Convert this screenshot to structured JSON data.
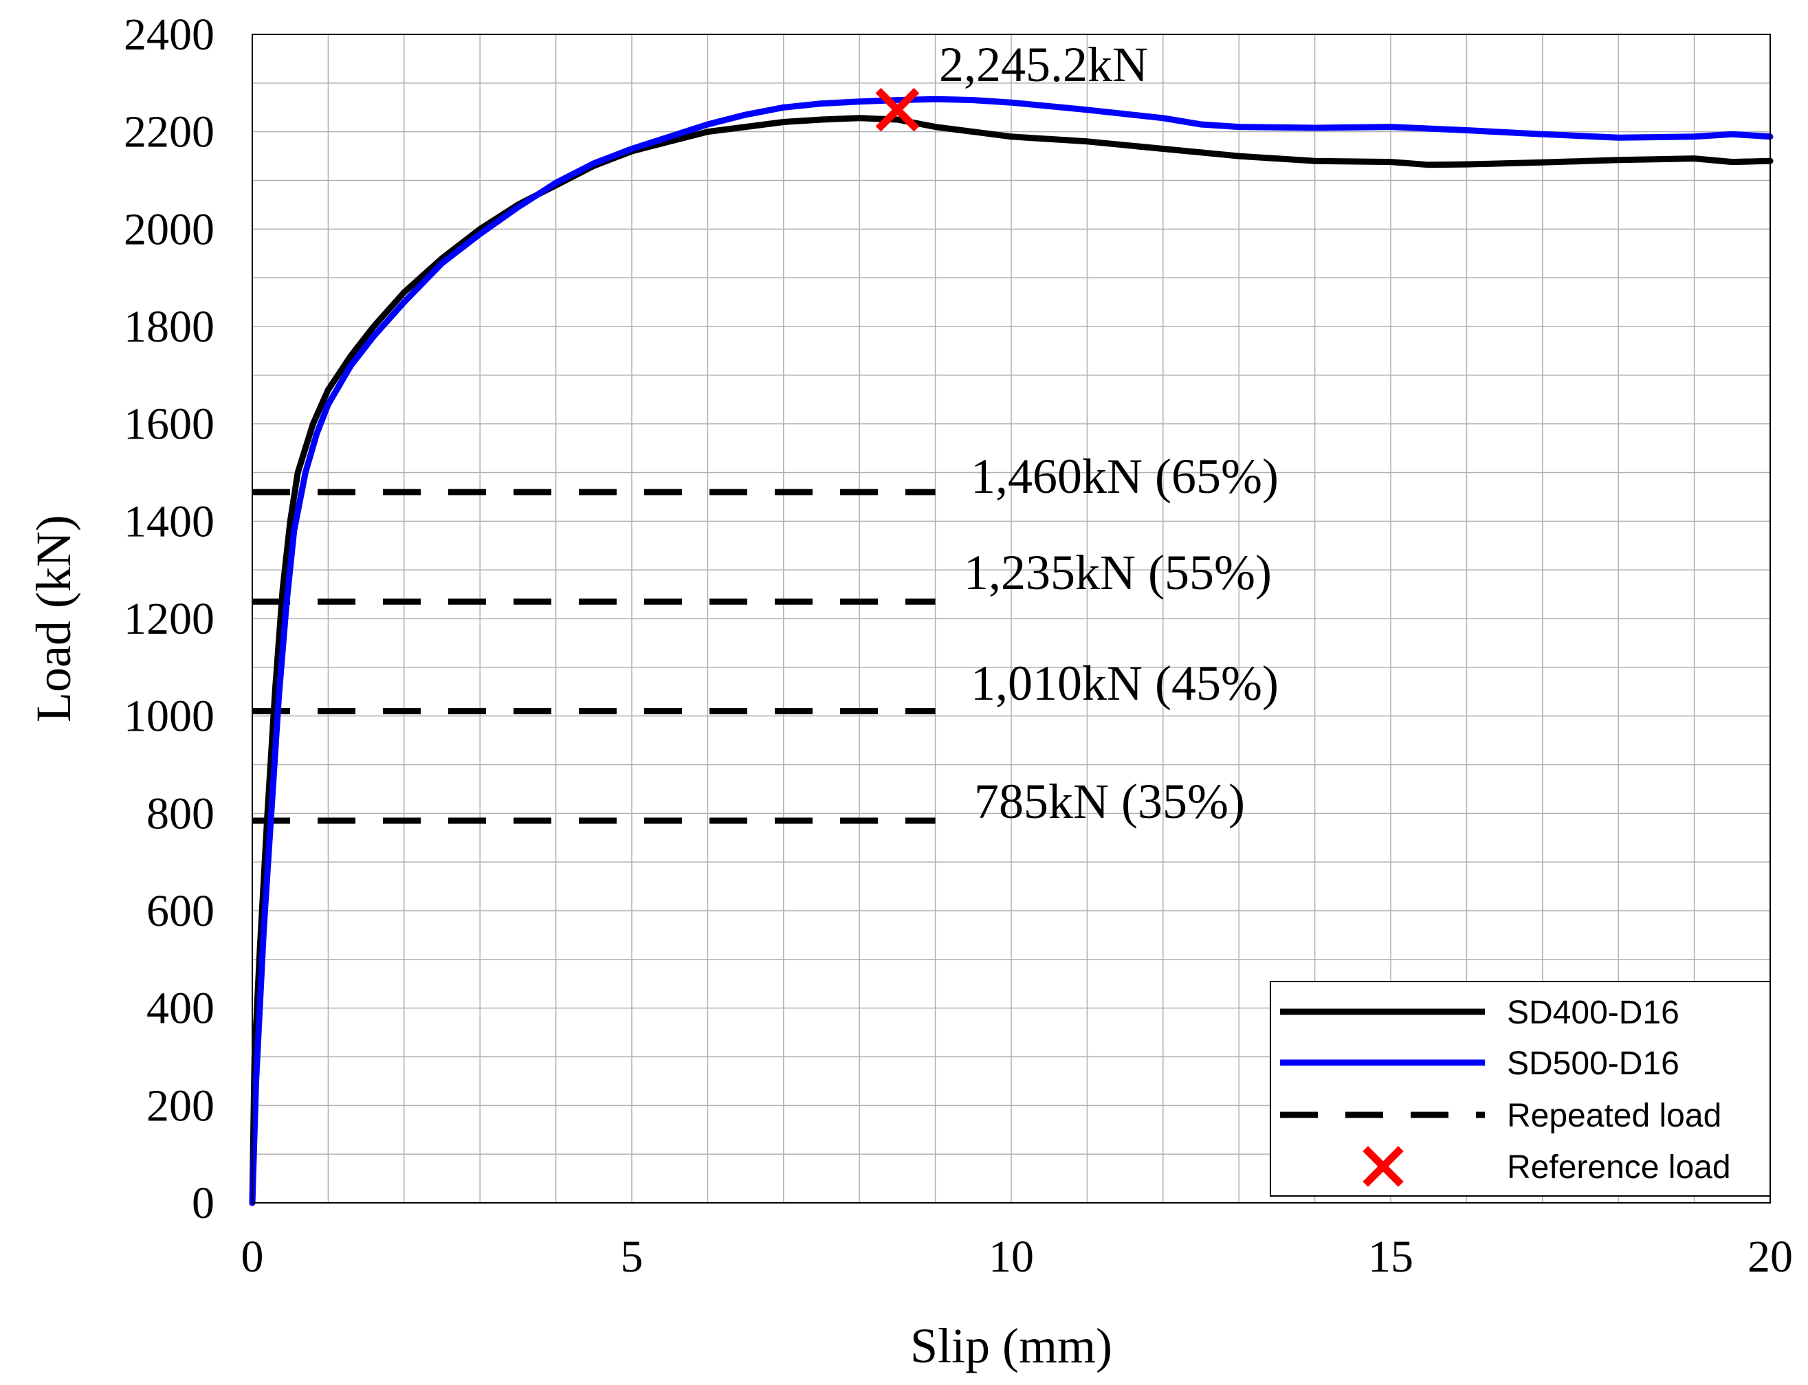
{
  "chart_data": {
    "type": "line",
    "title": "",
    "xlabel": "Slip (mm)",
    "ylabel": "Load (kN)",
    "xlim": [
      0,
      20
    ],
    "ylim": [
      0,
      2400
    ],
    "x_ticks": [
      0,
      5,
      10,
      15,
      20
    ],
    "y_ticks": [
      0,
      200,
      400,
      600,
      800,
      1000,
      1200,
      1400,
      1600,
      1800,
      2000,
      2200,
      2400
    ],
    "x_minor_step": 1,
    "y_minor_step": 100,
    "grid": true,
    "legend_position": "bottom-right",
    "series": [
      {
        "name": "SD400-D16",
        "color": "#000000",
        "style": "solid",
        "points": [
          [
            0,
            0
          ],
          [
            0.03,
            300
          ],
          [
            0.1,
            520
          ],
          [
            0.2,
            800
          ],
          [
            0.3,
            1050
          ],
          [
            0.4,
            1260
          ],
          [
            0.5,
            1400
          ],
          [
            0.6,
            1500
          ],
          [
            0.8,
            1600
          ],
          [
            1.0,
            1670
          ],
          [
            1.3,
            1740
          ],
          [
            1.6,
            1800
          ],
          [
            2.0,
            1870
          ],
          [
            2.5,
            1940
          ],
          [
            3.0,
            2000
          ],
          [
            3.5,
            2050
          ],
          [
            4.0,
            2090
          ],
          [
            4.5,
            2130
          ],
          [
            5.0,
            2160
          ],
          [
            5.5,
            2180
          ],
          [
            6.0,
            2200
          ],
          [
            6.5,
            2210
          ],
          [
            7.0,
            2220
          ],
          [
            7.5,
            2225
          ],
          [
            8.0,
            2228
          ],
          [
            8.5,
            2225
          ],
          [
            9.0,
            2210
          ],
          [
            9.5,
            2200
          ],
          [
            10.0,
            2190
          ],
          [
            11.0,
            2180
          ],
          [
            12.0,
            2165
          ],
          [
            13.0,
            2150
          ],
          [
            14.0,
            2140
          ],
          [
            15.0,
            2138
          ],
          [
            15.5,
            2132
          ],
          [
            16.0,
            2133
          ],
          [
            17.0,
            2137
          ],
          [
            18.0,
            2142
          ],
          [
            19.0,
            2145
          ],
          [
            19.5,
            2138
          ],
          [
            20.0,
            2140
          ]
        ]
      },
      {
        "name": "SD500-D16",
        "color": "#0000ff",
        "style": "solid",
        "points": [
          [
            0,
            0
          ],
          [
            0.05,
            250
          ],
          [
            0.15,
            560
          ],
          [
            0.25,
            800
          ],
          [
            0.35,
            1040
          ],
          [
            0.45,
            1230
          ],
          [
            0.55,
            1380
          ],
          [
            0.7,
            1500
          ],
          [
            0.85,
            1580
          ],
          [
            1.0,
            1640
          ],
          [
            1.3,
            1720
          ],
          [
            1.6,
            1780
          ],
          [
            2.0,
            1850
          ],
          [
            2.5,
            1930
          ],
          [
            3.0,
            1990
          ],
          [
            3.5,
            2045
          ],
          [
            4.0,
            2095
          ],
          [
            4.5,
            2135
          ],
          [
            5.0,
            2165
          ],
          [
            5.5,
            2190
          ],
          [
            6.0,
            2215
          ],
          [
            6.5,
            2235
          ],
          [
            7.0,
            2250
          ],
          [
            7.5,
            2258
          ],
          [
            8.0,
            2262
          ],
          [
            8.5,
            2265
          ],
          [
            9.0,
            2267
          ],
          [
            9.5,
            2265
          ],
          [
            10.0,
            2260
          ],
          [
            11.0,
            2245
          ],
          [
            12.0,
            2228
          ],
          [
            12.5,
            2215
          ],
          [
            13.0,
            2210
          ],
          [
            14.0,
            2208
          ],
          [
            15.0,
            2210
          ],
          [
            16.0,
            2203
          ],
          [
            17.0,
            2195
          ],
          [
            18.0,
            2188
          ],
          [
            19.0,
            2190
          ],
          [
            19.5,
            2195
          ],
          [
            20.0,
            2190
          ]
        ]
      }
    ],
    "repeated_load": {
      "name": "Repeated load",
      "x_range": [
        0,
        9
      ],
      "levels": [
        {
          "y": 1460,
          "label": "1,460kN (65%)"
        },
        {
          "y": 1235,
          "label": "1,235kN (55%)"
        },
        {
          "y": 1010,
          "label": "1,010kN (45%)"
        },
        {
          "y": 785,
          "label": "785kN (35%)"
        }
      ]
    },
    "reference_load": {
      "name": "Reference load",
      "x": 8.5,
      "y": 2245.2,
      "label": "2,245.2kN",
      "color": "#ff0000"
    }
  }
}
